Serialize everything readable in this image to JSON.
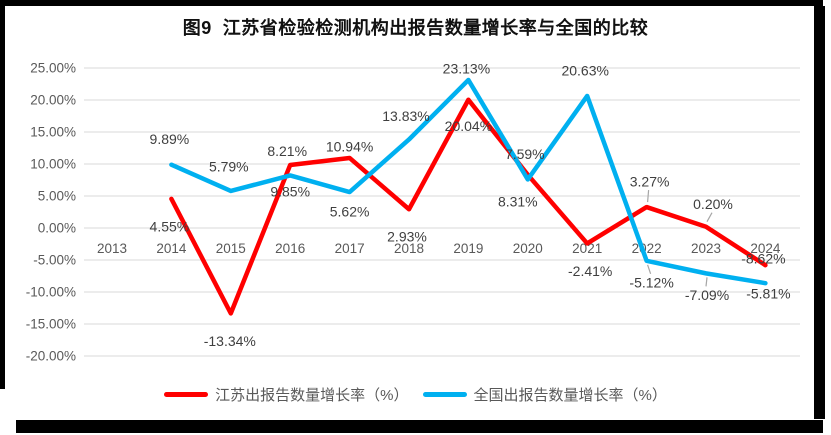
{
  "chart_data": {
    "type": "line",
    "title": "图9  江苏省检验检测机构出报告数量增长率与全国的比较",
    "categories": [
      "2013",
      "2014",
      "2015",
      "2016",
      "2017",
      "2018",
      "2019",
      "2020",
      "2021",
      "2022",
      "2023",
      "2024"
    ],
    "series": [
      {
        "name": "江苏出报告数量增长率（%）",
        "color": "#FF0000",
        "values": [
          null,
          4.55,
          -13.34,
          9.85,
          10.94,
          2.93,
          20.04,
          8.31,
          -2.41,
          3.27,
          0.2,
          -5.81
        ],
        "label_offsets": [
          null,
          [
            -2,
            28
          ],
          [
            -1,
            28
          ],
          [
            0,
            27
          ],
          [
            0,
            -11
          ],
          [
            -2,
            28
          ],
          [
            0,
            27
          ],
          [
            -10,
            27
          ],
          [
            3,
            28
          ],
          [
            3,
            -25,
            "leader"
          ],
          [
            7,
            -22,
            "leader"
          ],
          [
            3,
            29
          ]
        ]
      },
      {
        "name": "全国出报告数量增长率（%）",
        "color": "#00B0F0",
        "values": [
          null,
          9.89,
          5.79,
          8.21,
          5.62,
          13.83,
          23.13,
          7.59,
          20.63,
          -5.12,
          -7.09,
          -8.62
        ],
        "label_offsets": [
          null,
          [
            -2,
            -25
          ],
          [
            -2,
            -24
          ],
          [
            -3,
            -24
          ],
          [
            0,
            20
          ],
          [
            -3,
            -23
          ],
          [
            -2,
            -11
          ],
          [
            -3,
            -25
          ],
          [
            -2,
            -25
          ],
          [
            5,
            22,
            "leader"
          ],
          [
            1,
            22,
            "leader"
          ],
          [
            -2,
            -24
          ]
        ]
      }
    ],
    "ylim": [
      -20,
      25
    ],
    "ytick_step": 5,
    "ytick_format": "0.00%",
    "label_format": "0.00%",
    "grid": true,
    "legend_position": "bottom"
  },
  "colors": {
    "grid": "#D9D9D9",
    "axis_text": "#595959",
    "data_label_text": "#3F3F3F",
    "leader": "#A6A6A6",
    "frame": "#000000",
    "background": "#FFFFFF"
  }
}
